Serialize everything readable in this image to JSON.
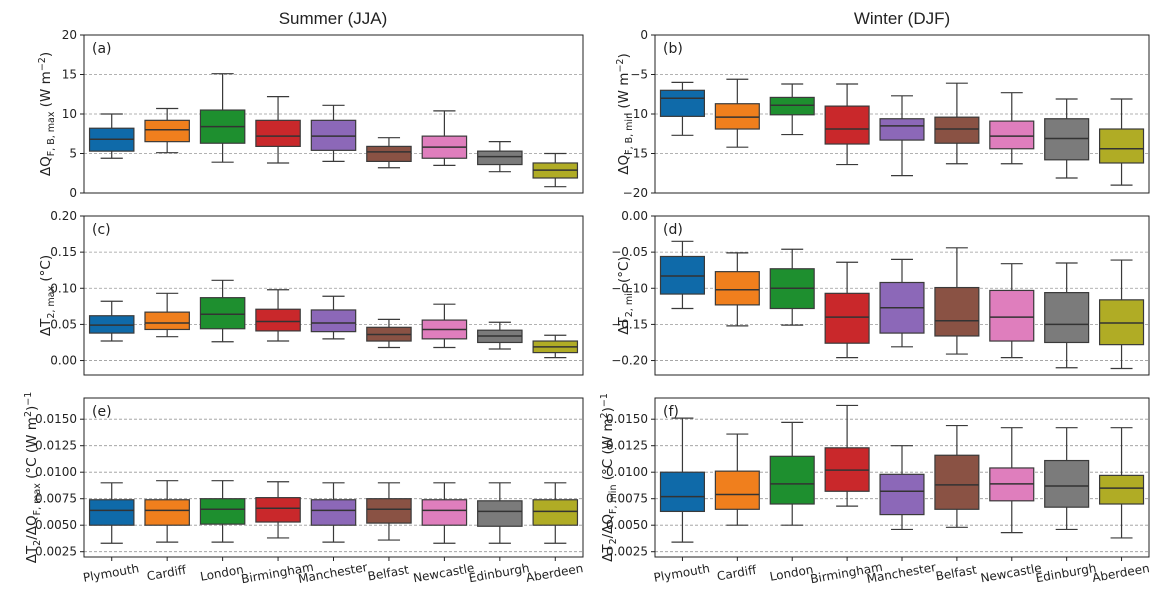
{
  "chart_data": [
    {
      "type": "box",
      "panel_label": "(a)",
      "column_title": "Summer (JJA)",
      "ylabel": "ΔQF,B,max (W m⁻²)",
      "ylabel_parts": {
        "base": "ΔQ",
        "sub": "F, B, max",
        "unit": " (W m",
        "sup": "−2",
        "close": ")"
      },
      "ylim": [
        0,
        20
      ],
      "yticks": [
        0,
        5,
        10,
        15,
        20
      ],
      "tick_labels": [
        "0",
        "5",
        "10",
        "15",
        "20"
      ],
      "grid": true,
      "categories": [
        "Plymouth",
        "Cardiff",
        "London",
        "Birmingham",
        "Manchester",
        "Belfast",
        "Newcastle",
        "Edinburgh",
        "Aberdeen"
      ],
      "boxes": [
        {
          "min": 4.4,
          "q1": 5.3,
          "median": 6.8,
          "q3": 8.2,
          "max": 10.0
        },
        {
          "min": 5.1,
          "q1": 6.5,
          "median": 8.0,
          "q3": 9.2,
          "max": 10.7
        },
        {
          "min": 3.9,
          "q1": 6.3,
          "median": 8.4,
          "q3": 10.5,
          "max": 15.1
        },
        {
          "min": 3.8,
          "q1": 5.9,
          "median": 7.2,
          "q3": 9.2,
          "max": 12.2
        },
        {
          "min": 4.0,
          "q1": 5.4,
          "median": 7.2,
          "q3": 9.2,
          "max": 11.1
        },
        {
          "min": 3.2,
          "q1": 4.0,
          "median": 5.2,
          "q3": 5.9,
          "max": 7.0
        },
        {
          "min": 3.5,
          "q1": 4.4,
          "median": 5.8,
          "q3": 7.2,
          "max": 10.4
        },
        {
          "min": 2.7,
          "q1": 3.6,
          "median": 4.6,
          "q3": 5.3,
          "max": 6.5
        },
        {
          "min": 0.8,
          "q1": 1.9,
          "median": 2.9,
          "q3": 3.8,
          "max": 5.0
        }
      ]
    },
    {
      "type": "box",
      "panel_label": "(b)",
      "column_title": "Winter (DJF)",
      "ylabel": "ΔQF,B,min (W m⁻²)",
      "ylabel_parts": {
        "base": "ΔQ",
        "sub": "F, B, min",
        "unit": " (W m",
        "sup": "−2",
        "close": ")"
      },
      "ylim": [
        -20,
        0
      ],
      "yticks": [
        -20,
        -15,
        -10,
        -5,
        0
      ],
      "tick_labels": [
        "−20",
        "−15",
        "−10",
        "−5",
        "0"
      ],
      "grid": true,
      "categories": [
        "Plymouth",
        "Cardiff",
        "London",
        "Birmingham",
        "Manchester",
        "Belfast",
        "Newcastle",
        "Edinburgh",
        "Aberdeen"
      ],
      "boxes": [
        {
          "min": -12.7,
          "q1": -10.3,
          "median": -8.0,
          "q3": -7.0,
          "max": -6.0
        },
        {
          "min": -14.2,
          "q1": -11.9,
          "median": -10.4,
          "q3": -8.7,
          "max": -5.6
        },
        {
          "min": -12.6,
          "q1": -10.1,
          "median": -8.9,
          "q3": -7.9,
          "max": -6.2
        },
        {
          "min": -16.4,
          "q1": -13.8,
          "median": -11.9,
          "q3": -9.0,
          "max": -6.2
        },
        {
          "min": -17.8,
          "q1": -13.3,
          "median": -11.5,
          "q3": -10.6,
          "max": -7.7
        },
        {
          "min": -16.3,
          "q1": -13.7,
          "median": -11.9,
          "q3": -10.4,
          "max": -6.1
        },
        {
          "min": -16.3,
          "q1": -14.4,
          "median": -12.8,
          "q3": -10.9,
          "max": -7.3
        },
        {
          "min": -18.1,
          "q1": -15.8,
          "median": -13.1,
          "q3": -10.6,
          "max": -8.1
        },
        {
          "min": -19.0,
          "q1": -16.2,
          "median": -14.4,
          "q3": -11.9,
          "max": -8.1
        }
      ]
    },
    {
      "type": "box",
      "panel_label": "(c)",
      "ylabel": "ΔT2,max (°C)",
      "ylabel_parts": {
        "base": "ΔT",
        "sub": "2, max",
        "unit": " (°C)",
        "sup": "",
        "close": ""
      },
      "ylim": [
        -0.02,
        0.2
      ],
      "yticks": [
        0.0,
        0.05,
        0.1,
        0.15,
        0.2
      ],
      "tick_labels": [
        "0.00",
        "0.05",
        "0.10",
        "0.15",
        "0.20"
      ],
      "grid": true,
      "categories": [
        "Plymouth",
        "Cardiff",
        "London",
        "Birmingham",
        "Manchester",
        "Belfast",
        "Newcastle",
        "Edinburgh",
        "Aberdeen"
      ],
      "boxes": [
        {
          "min": 0.027,
          "q1": 0.038,
          "median": 0.049,
          "q3": 0.062,
          "max": 0.082
        },
        {
          "min": 0.033,
          "q1": 0.043,
          "median": 0.052,
          "q3": 0.067,
          "max": 0.093
        },
        {
          "min": 0.026,
          "q1": 0.044,
          "median": 0.064,
          "q3": 0.087,
          "max": 0.111
        },
        {
          "min": 0.027,
          "q1": 0.041,
          "median": 0.054,
          "q3": 0.071,
          "max": 0.098
        },
        {
          "min": 0.03,
          "q1": 0.04,
          "median": 0.052,
          "q3": 0.07,
          "max": 0.089
        },
        {
          "min": 0.018,
          "q1": 0.027,
          "median": 0.036,
          "q3": 0.046,
          "max": 0.057
        },
        {
          "min": 0.018,
          "q1": 0.03,
          "median": 0.043,
          "q3": 0.056,
          "max": 0.078
        },
        {
          "min": 0.016,
          "q1": 0.025,
          "median": 0.034,
          "q3": 0.042,
          "max": 0.053
        },
        {
          "min": 0.004,
          "q1": 0.011,
          "median": 0.019,
          "q3": 0.027,
          "max": 0.035
        }
      ]
    },
    {
      "type": "box",
      "panel_label": "(d)",
      "ylabel": "ΔT2,min (°C)",
      "ylabel_parts": {
        "base": "ΔT",
        "sub": "2, min",
        "unit": " (°C)",
        "sup": "",
        "close": ""
      },
      "ylim": [
        -0.22,
        0.0
      ],
      "yticks": [
        -0.2,
        -0.15,
        -0.1,
        -0.05,
        0.0
      ],
      "tick_labels": [
        "−0.20",
        "−0.15",
        "−0.10",
        "−0.05",
        "0.00"
      ],
      "grid": true,
      "categories": [
        "Plymouth",
        "Cardiff",
        "London",
        "Birmingham",
        "Manchester",
        "Belfast",
        "Newcastle",
        "Edinburgh",
        "Aberdeen"
      ],
      "boxes": [
        {
          "min": -0.128,
          "q1": -0.108,
          "median": -0.083,
          "q3": -0.056,
          "max": -0.035
        },
        {
          "min": -0.152,
          "q1": -0.123,
          "median": -0.102,
          "q3": -0.077,
          "max": -0.051
        },
        {
          "min": -0.151,
          "q1": -0.128,
          "median": -0.1,
          "q3": -0.073,
          "max": -0.046
        },
        {
          "min": -0.196,
          "q1": -0.176,
          "median": -0.14,
          "q3": -0.107,
          "max": -0.064
        },
        {
          "min": -0.181,
          "q1": -0.162,
          "median": -0.127,
          "q3": -0.092,
          "max": -0.06
        },
        {
          "min": -0.191,
          "q1": -0.166,
          "median": -0.145,
          "q3": -0.099,
          "max": -0.044
        },
        {
          "min": -0.196,
          "q1": -0.173,
          "median": -0.14,
          "q3": -0.103,
          "max": -0.066
        },
        {
          "min": -0.21,
          "q1": -0.175,
          "median": -0.15,
          "q3": -0.106,
          "max": -0.065
        },
        {
          "min": -0.211,
          "q1": -0.178,
          "median": -0.148,
          "q3": -0.116,
          "max": -0.061
        }
      ]
    },
    {
      "type": "box",
      "panel_label": "(e)",
      "ylabel": "ΔT2/ΔQF,max (°C (W m²)⁻¹)",
      "ylabel_parts": {
        "base": "ΔT",
        "sub": "2",
        "mid": "/ΔQ",
        "sub2": "F, max",
        "unit": " (°C (W m",
        "sup": "2",
        "close": ")",
        "sup2": "−1"
      },
      "ylim": [
        0.002,
        0.017
      ],
      "yticks": [
        0.0025,
        0.005,
        0.0075,
        0.01,
        0.0125,
        0.015
      ],
      "tick_labels": [
        "0.0025",
        "0.0050",
        "0.0075",
        "0.0100",
        "0.0125",
        "0.0150"
      ],
      "grid": true,
      "categories": [
        "Plymouth",
        "Cardiff",
        "London",
        "Birmingham",
        "Manchester",
        "Belfast",
        "Newcastle",
        "Edinburgh",
        "Aberdeen"
      ],
      "boxes": [
        {
          "min": 0.0033,
          "q1": 0.005,
          "median": 0.0064,
          "q3": 0.0074,
          "max": 0.009
        },
        {
          "min": 0.0034,
          "q1": 0.005,
          "median": 0.0064,
          "q3": 0.0074,
          "max": 0.0092
        },
        {
          "min": 0.0034,
          "q1": 0.0051,
          "median": 0.0065,
          "q3": 0.0075,
          "max": 0.0092
        },
        {
          "min": 0.0038,
          "q1": 0.0053,
          "median": 0.0066,
          "q3": 0.0076,
          "max": 0.0091
        },
        {
          "min": 0.0034,
          "q1": 0.005,
          "median": 0.0064,
          "q3": 0.0074,
          "max": 0.009
        },
        {
          "min": 0.0036,
          "q1": 0.0052,
          "median": 0.0065,
          "q3": 0.0075,
          "max": 0.009
        },
        {
          "min": 0.0033,
          "q1": 0.005,
          "median": 0.0064,
          "q3": 0.0074,
          "max": 0.009
        },
        {
          "min": 0.0033,
          "q1": 0.0049,
          "median": 0.0063,
          "q3": 0.0073,
          "max": 0.009
        },
        {
          "min": 0.0033,
          "q1": 0.005,
          "median": 0.0063,
          "q3": 0.0074,
          "max": 0.009
        }
      ]
    },
    {
      "type": "box",
      "panel_label": "(f)",
      "ylabel": "ΔT2/ΔQF,min (°C (W m²)⁻¹)",
      "ylabel_parts": {
        "base": "ΔT",
        "sub": "2",
        "mid": "/ΔQ",
        "sub2": "F, min",
        "unit": " (°C (W m",
        "sup": "2",
        "close": ")",
        "sup2": "−1"
      },
      "ylim": [
        0.002,
        0.017
      ],
      "yticks": [
        0.0025,
        0.005,
        0.0075,
        0.01,
        0.0125,
        0.015
      ],
      "tick_labels": [
        "0.0025",
        "0.0050",
        "0.0075",
        "0.0100",
        "0.0125",
        "0.0150"
      ],
      "grid": true,
      "categories": [
        "Plymouth",
        "Cardiff",
        "London",
        "Birmingham",
        "Manchester",
        "Belfast",
        "Newcastle",
        "Edinburgh",
        "Aberdeen"
      ],
      "boxes": [
        {
          "min": 0.0034,
          "q1": 0.0063,
          "median": 0.0077,
          "q3": 0.01,
          "max": 0.0151
        },
        {
          "min": 0.005,
          "q1": 0.0065,
          "median": 0.0079,
          "q3": 0.0101,
          "max": 0.0136
        },
        {
          "min": 0.005,
          "q1": 0.007,
          "median": 0.0089,
          "q3": 0.0115,
          "max": 0.0147
        },
        {
          "min": 0.0068,
          "q1": 0.0082,
          "median": 0.0102,
          "q3": 0.0123,
          "max": 0.0163
        },
        {
          "min": 0.0046,
          "q1": 0.006,
          "median": 0.0082,
          "q3": 0.0098,
          "max": 0.0125
        },
        {
          "min": 0.0048,
          "q1": 0.0065,
          "median": 0.0088,
          "q3": 0.0116,
          "max": 0.0144
        },
        {
          "min": 0.0043,
          "q1": 0.0073,
          "median": 0.0089,
          "q3": 0.0104,
          "max": 0.0142
        },
        {
          "min": 0.0046,
          "q1": 0.0067,
          "median": 0.0087,
          "q3": 0.0111,
          "max": 0.0142
        },
        {
          "min": 0.0038,
          "q1": 0.007,
          "median": 0.0085,
          "q3": 0.0097,
          "max": 0.0142
        }
      ]
    }
  ],
  "colors": [
    "#0f6aa9",
    "#f07f1d",
    "#1e8f2f",
    "#c9282b",
    "#8c68b8",
    "#8a5244",
    "#df7ebd",
    "#7b7b7b",
    "#b0ac25"
  ],
  "style": {
    "axis_color": "#222222",
    "grid_color": "#999999",
    "whisker_color": "#3a3a3a",
    "median_color": "#333333"
  }
}
